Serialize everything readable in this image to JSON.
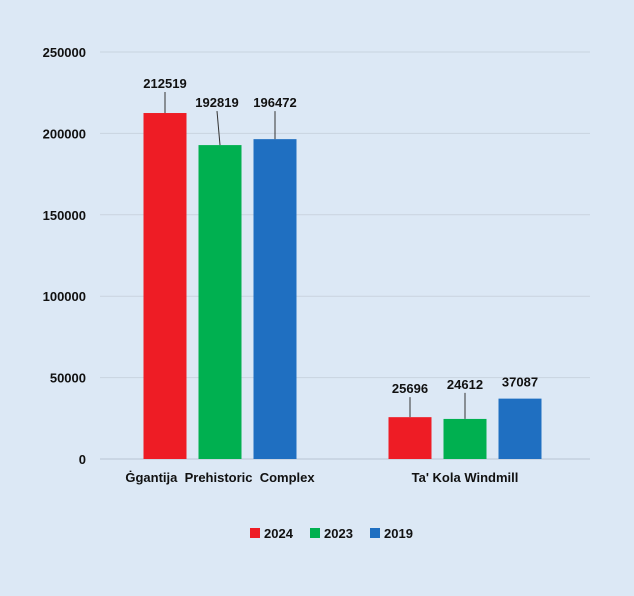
{
  "chart_data": {
    "type": "bar",
    "categories": [
      "Ġgantija  Prehistoric  Complex",
      "Ta' Kola Windmill"
    ],
    "series": [
      {
        "name": "2024",
        "values": [
          212519,
          25696
        ],
        "color": "#ee1c25"
      },
      {
        "name": "2023",
        "values": [
          192819,
          24612
        ],
        "color": "#00b050"
      },
      {
        "name": "2019",
        "values": [
          196472,
          37087
        ],
        "color": "#1f6fc1"
      }
    ],
    "y_ticks": [
      "0",
      "50000",
      "100000",
      "150000",
      "200000",
      "250000"
    ],
    "ylim": [
      0,
      250000
    ],
    "grid": true,
    "legend_position": "bottom",
    "title": "",
    "xlabel": "",
    "ylabel": ""
  }
}
